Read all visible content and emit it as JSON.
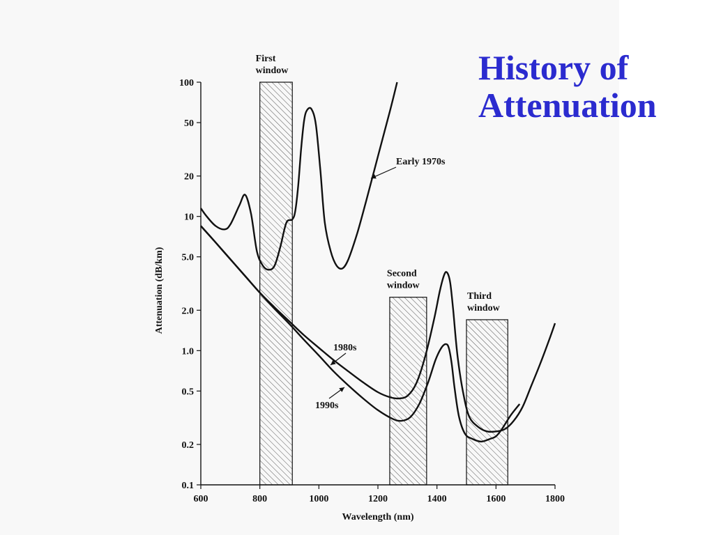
{
  "slide": {
    "title_line1": "History of",
    "title_line2": "Attenuation",
    "title_color": "#2b2bcf"
  },
  "chart_data": {
    "type": "line",
    "title": "",
    "xlabel": "Wavelength (nm)",
    "ylabel": "Attenuation (dB/km)",
    "xlim": [
      600,
      1800
    ],
    "ylim": [
      0.1,
      100
    ],
    "y_scale": "log",
    "x_ticks": [
      600,
      800,
      1000,
      1200,
      1400,
      1600,
      1800
    ],
    "x_tick_labels": [
      "600",
      "800",
      "1000",
      "1200",
      "1400",
      "1600",
      "1800"
    ],
    "y_ticks": [
      0.1,
      0.2,
      0.5,
      1,
      2,
      5,
      10,
      20,
      50,
      100
    ],
    "y_tick_labels": [
      "0.1",
      "0.2",
      "0.5",
      "1.0",
      "2.0",
      "5.0",
      "10",
      "20",
      "50",
      "100"
    ],
    "grid": false,
    "windows": [
      {
        "label_line1": "First",
        "label_line2": "window",
        "x_start": 800,
        "x_end": 910,
        "top": 100
      },
      {
        "label_line1": "Second",
        "label_line2": "window",
        "x_start": 1240,
        "x_end": 1365,
        "top": 2.5
      },
      {
        "label_line1": "Third",
        "label_line2": "window",
        "x_start": 1500,
        "x_end": 1640,
        "top": 1.7
      }
    ],
    "series": [
      {
        "name": "Early 1970s",
        "x": [
          600,
          620,
          650,
          680,
          700,
          730,
          750,
          770,
          790,
          810,
          830,
          850,
          870,
          890,
          910,
          920,
          930,
          940,
          950,
          960,
          975,
          990,
          1005,
          1020,
          1040,
          1060,
          1080,
          1100,
          1130,
          1160,
          1200,
          1240,
          1265
        ],
        "y": [
          11.5,
          10,
          8.5,
          8,
          8.7,
          12,
          14.5,
          10.5,
          5.5,
          4.3,
          4,
          4.3,
          6,
          9,
          9.5,
          11,
          17,
          32,
          52,
          62,
          63,
          48,
          22,
          9,
          5.5,
          4.3,
          4.1,
          4.8,
          7.5,
          13,
          28,
          60,
          100
        ]
      },
      {
        "name": "1980s",
        "x": [
          600,
          650,
          700,
          750,
          800,
          850,
          900,
          950,
          1000,
          1050,
          1100,
          1150,
          1200,
          1240,
          1270,
          1300,
          1330,
          1360,
          1390,
          1410,
          1425,
          1435,
          1445,
          1455,
          1470,
          1490,
          1510,
          1540,
          1570,
          1600,
          1630,
          1660,
          1690,
          1720,
          1750,
          1780,
          1800
        ],
        "y": [
          8.5,
          6.4,
          4.8,
          3.6,
          2.7,
          2.1,
          1.65,
          1.3,
          1.05,
          0.85,
          0.7,
          0.58,
          0.49,
          0.45,
          0.44,
          0.46,
          0.57,
          0.9,
          1.7,
          2.8,
          3.7,
          3.8,
          3.2,
          2.0,
          0.9,
          0.47,
          0.32,
          0.27,
          0.25,
          0.25,
          0.26,
          0.3,
          0.38,
          0.55,
          0.8,
          1.2,
          1.6
        ]
      },
      {
        "name": "1990s",
        "x": [
          600,
          650,
          700,
          750,
          800,
          850,
          900,
          950,
          1000,
          1050,
          1100,
          1150,
          1200,
          1250,
          1280,
          1310,
          1340,
          1370,
          1395,
          1415,
          1430,
          1440,
          1450,
          1460,
          1475,
          1495,
          1520,
          1550,
          1580,
          1600,
          1620,
          1650,
          1680
        ],
        "y": [
          8.5,
          6.4,
          4.8,
          3.6,
          2.7,
          2.05,
          1.58,
          1.2,
          0.92,
          0.7,
          0.55,
          0.44,
          0.36,
          0.31,
          0.3,
          0.32,
          0.4,
          0.58,
          0.85,
          1.05,
          1.12,
          1.05,
          0.8,
          0.52,
          0.32,
          0.24,
          0.22,
          0.21,
          0.22,
          0.23,
          0.26,
          0.33,
          0.4
        ]
      }
    ]
  }
}
